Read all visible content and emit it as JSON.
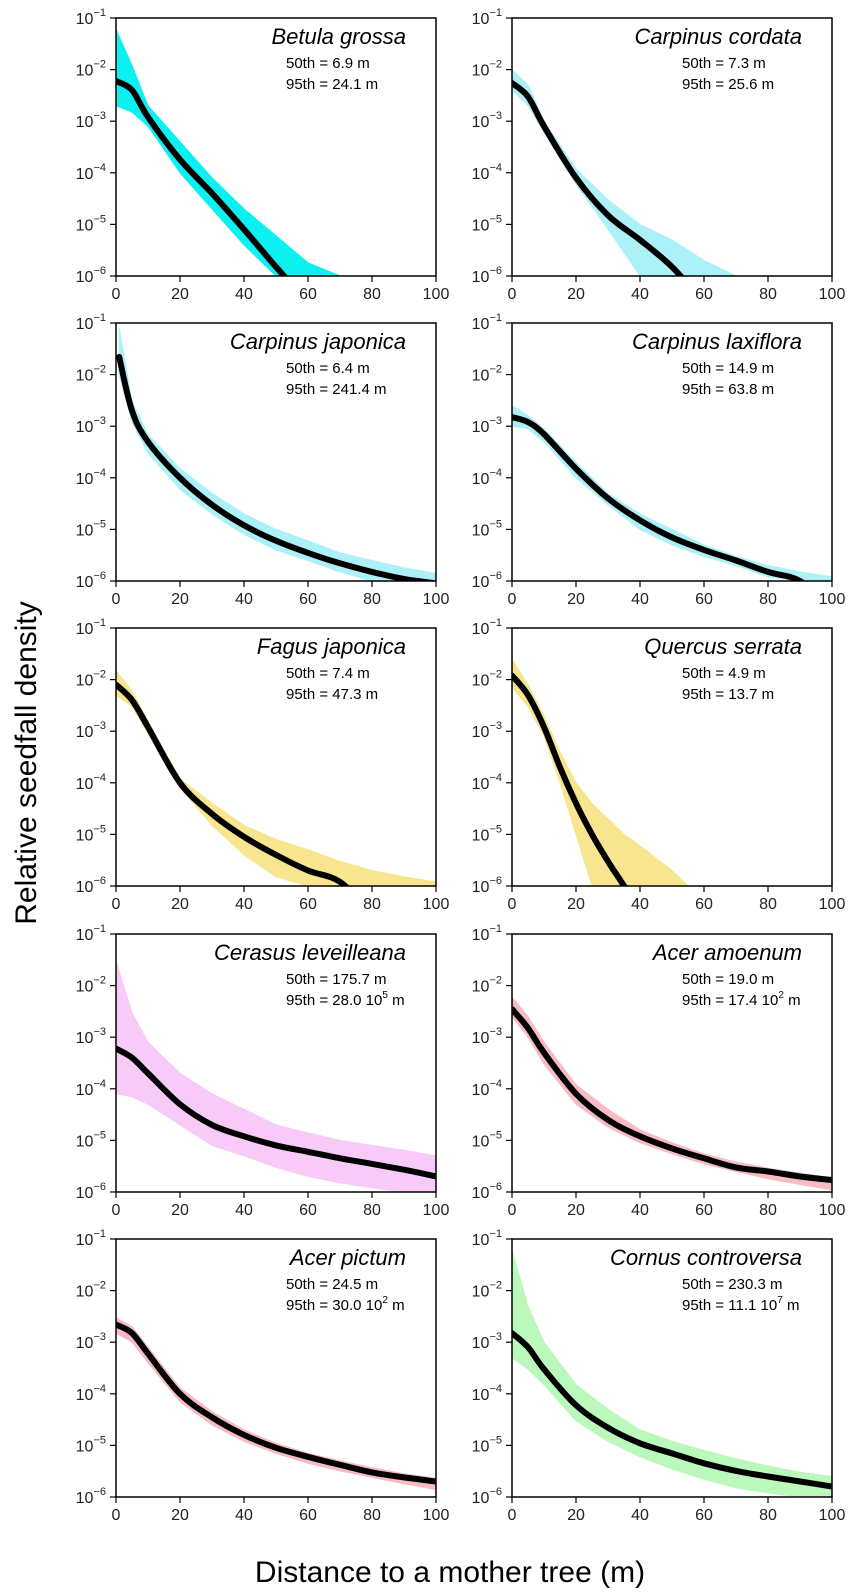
{
  "figure": {
    "ylabel": "Relative seedfall density",
    "xlabel": "Distance to a mother tree (m)"
  },
  "chart_data": [
    {
      "type": "line",
      "title": "Betula grossa",
      "xlim": [
        0,
        100
      ],
      "ylim": [
        1e-06,
        0.1
      ],
      "yscale": "log",
      "color": "#00f0f0",
      "stats": {
        "p50": "50th = 6.9 m",
        "p95": "95th = 24.1 m"
      },
      "x": [
        0,
        5,
        10,
        20,
        30,
        40,
        50,
        60,
        70,
        80,
        90,
        100
      ],
      "median": [
        0.006,
        0.004,
        0.0012,
        0.00018,
        4e-05,
        8e-06,
        1.5e-06,
        null,
        null,
        null,
        null,
        null
      ],
      "band_upper": [
        0.06,
        0.012,
        0.002,
        0.0004,
        8e-05,
        2e-05,
        6e-06,
        1.8e-06,
        null,
        null,
        null,
        null
      ],
      "band_lower": [
        0.002,
        0.0015,
        0.0008,
        0.0001,
        2e-05,
        4e-06,
        1e-06,
        null,
        null,
        null,
        null,
        null
      ]
    },
    {
      "type": "line",
      "title": "Carpinus cordata",
      "xlim": [
        0,
        100
      ],
      "ylim": [
        1e-06,
        0.1
      ],
      "yscale": "log",
      "color": "#a8f0f8",
      "stats": {
        "p50": "50th = 7.3 m",
        "p95": "95th = 25.6 m"
      },
      "x": [
        0,
        5,
        10,
        20,
        30,
        40,
        50,
        60,
        70,
        80,
        90,
        100
      ],
      "median": [
        0.0055,
        0.003,
        0.0008,
        8e-05,
        1.5e-05,
        5e-06,
        1.5e-06,
        null,
        null,
        null,
        null,
        null
      ],
      "band_upper": [
        0.01,
        0.005,
        0.001,
        0.00012,
        3e-05,
        1e-05,
        5e-06,
        2e-06,
        1e-06,
        null,
        null,
        null
      ],
      "band_lower": [
        0.004,
        0.002,
        0.0006,
        6e-05,
        8e-06,
        1e-06,
        null,
        null,
        null,
        null,
        null,
        null
      ]
    },
    {
      "type": "line",
      "title": "Carpinus japonica",
      "xlim": [
        0,
        100
      ],
      "ylim": [
        1e-06,
        0.1
      ],
      "yscale": "log",
      "color": "#a8f0f8",
      "stats": {
        "p50": "50th = 6.4 m",
        "p95": "95th = 241.4 m"
      },
      "x": [
        1,
        5,
        10,
        20,
        30,
        40,
        50,
        60,
        70,
        80,
        90,
        100
      ],
      "median": [
        0.022,
        0.002,
        0.0005,
        0.0001,
        3e-05,
        1.2e-05,
        6e-06,
        3.5e-06,
        2.2e-06,
        1.5e-06,
        1.1e-06,
        9e-07
      ],
      "band_upper": [
        0.08,
        0.003,
        0.0007,
        0.00015,
        5e-05,
        2e-05,
        1e-05,
        6e-06,
        3.5e-06,
        2.5e-06,
        1.8e-06,
        1.4e-06
      ],
      "band_lower": [
        0.01,
        0.0012,
        0.0003,
        6e-05,
        2e-05,
        8e-06,
        4e-06,
        2.5e-06,
        1.5e-06,
        1e-06,
        null,
        null
      ]
    },
    {
      "type": "line",
      "title": "Carpinus laxiflora",
      "xlim": [
        0,
        100
      ],
      "ylim": [
        1e-06,
        0.1
      ],
      "yscale": "log",
      "color": "#a8f0f8",
      "stats": {
        "p50": "50th = 14.9 m",
        "p95": "95th = 63.8 m"
      },
      "x": [
        0,
        5,
        10,
        20,
        30,
        40,
        50,
        60,
        70,
        80,
        90,
        100
      ],
      "median": [
        0.0015,
        0.0012,
        0.0007,
        0.00015,
        4e-05,
        1.5e-05,
        7e-06,
        4e-06,
        2.5e-06,
        1.5e-06,
        1e-06,
        null
      ],
      "band_upper": [
        0.0025,
        0.0016,
        0.0009,
        0.0002,
        5e-05,
        2e-05,
        1e-05,
        5e-06,
        3e-06,
        2e-06,
        1.5e-06,
        1.2e-06
      ],
      "band_lower": [
        0.001,
        0.0009,
        0.0005,
        0.0001,
        3e-05,
        1e-05,
        5e-06,
        3e-06,
        2e-06,
        1.2e-06,
        null,
        null
      ]
    },
    {
      "type": "line",
      "title": "Fagus japonica",
      "xlim": [
        0,
        100
      ],
      "ylim": [
        1e-06,
        0.1
      ],
      "yscale": "log",
      "color": "#f8e48a",
      "stats": {
        "p50": "50th = 7.4 m",
        "p95": "95th = 47.3 m"
      },
      "x": [
        0,
        5,
        10,
        20,
        30,
        40,
        50,
        60,
        70,
        80,
        90,
        100
      ],
      "median": [
        0.008,
        0.004,
        0.0012,
        0.0001,
        2.5e-05,
        9e-06,
        4e-06,
        2e-06,
        1.2e-06,
        null,
        null,
        null
      ],
      "band_upper": [
        0.015,
        0.006,
        0.0016,
        0.00012,
        4e-05,
        1.5e-05,
        8e-06,
        5e-06,
        3e-06,
        2e-06,
        1.5e-06,
        1.2e-06
      ],
      "band_lower": [
        0.005,
        0.003,
        0.0009,
        8e-05,
        1.5e-05,
        4e-06,
        1.5e-06,
        null,
        null,
        null,
        null,
        null
      ]
    },
    {
      "type": "line",
      "title": "Quercus serrata",
      "xlim": [
        0,
        100
      ],
      "ylim": [
        1e-06,
        0.1
      ],
      "yscale": "log",
      "color": "#f8e48a",
      "stats": {
        "p50": "50th = 4.9 m",
        "p95": "95th = 13.7 m"
      },
      "x": [
        0,
        5,
        10,
        15,
        20,
        25,
        30,
        35,
        40,
        50,
        55
      ],
      "median": [
        0.012,
        0.005,
        0.0012,
        0.0002,
        4e-05,
        1e-05,
        3e-06,
        1e-06,
        null,
        null,
        null
      ],
      "band_upper": [
        0.025,
        0.008,
        0.002,
        0.0004,
        0.0001,
        4e-05,
        2e-05,
        1e-05,
        6e-06,
        2e-06,
        1e-06
      ],
      "band_lower": [
        0.007,
        0.003,
        0.0008,
        0.0001,
        1e-05,
        1e-06,
        null,
        null,
        null,
        null,
        null
      ]
    },
    {
      "type": "line",
      "title": "Cerasus leveilleana",
      "xlim": [
        0,
        100
      ],
      "ylim": [
        1e-06,
        0.1
      ],
      "yscale": "log",
      "color": "#f8c8f8",
      "stats": {
        "p50": "50th = 175.7 m",
        "p95_base": "95th = 28.0  10",
        "p95_exp": "5",
        "p95_unit": " m"
      },
      "x": [
        0,
        5,
        10,
        20,
        30,
        40,
        50,
        60,
        70,
        80,
        90,
        100
      ],
      "median": [
        0.0006,
        0.0004,
        0.0002,
        5e-05,
        2e-05,
        1.2e-05,
        8e-06,
        6e-06,
        4.5e-06,
        3.5e-06,
        2.7e-06,
        2e-06
      ],
      "band_upper": [
        0.03,
        0.003,
        0.0008,
        0.0002,
        8e-05,
        4e-05,
        2e-05,
        1.4e-05,
        1e-05,
        8e-06,
        6.5e-06,
        5e-06
      ],
      "band_lower": [
        8e-05,
        7e-05,
        5e-05,
        2e-05,
        8e-06,
        5e-06,
        3e-06,
        2e-06,
        1.5e-06,
        1.2e-06,
        1e-06,
        null
      ]
    },
    {
      "type": "line",
      "title": "Acer amoenum",
      "xlim": [
        0,
        100
      ],
      "ylim": [
        1e-06,
        0.1
      ],
      "yscale": "log",
      "color": "#f8b8c0",
      "stats": {
        "p50": "50th = 19.0 m",
        "p95_base": "95th = 17.4  10",
        "p95_exp": "2",
        "p95_unit": " m"
      },
      "x": [
        0,
        5,
        10,
        20,
        30,
        40,
        50,
        60,
        70,
        80,
        90,
        100
      ],
      "median": [
        0.0035,
        0.0015,
        0.0005,
        8e-05,
        2.5e-05,
        1.2e-05,
        7e-06,
        4.5e-06,
        3e-06,
        2.5e-06,
        2e-06,
        1.7e-06
      ],
      "band_upper": [
        0.006,
        0.0025,
        0.0008,
        0.00012,
        4e-05,
        1.6e-05,
        9e-06,
        5.5e-06,
        3.8e-06,
        2.9e-06,
        2.3e-06,
        1.9e-06
      ],
      "band_lower": [
        0.0025,
        0.001,
        0.0003,
        5e-05,
        1.8e-05,
        9e-06,
        5.5e-06,
        3.5e-06,
        2.5e-06,
        1.8e-06,
        1.4e-06,
        1.1e-06
      ]
    },
    {
      "type": "line",
      "title": "Acer pictum",
      "xlim": [
        0,
        100
      ],
      "ylim": [
        1e-06,
        0.1
      ],
      "yscale": "log",
      "color": "#f8b8c0",
      "stats": {
        "p50": "50th = 24.5 m",
        "p95_base": "95th = 30.0  10",
        "p95_exp": "2",
        "p95_unit": " m"
      },
      "x": [
        0,
        5,
        10,
        20,
        30,
        40,
        50,
        60,
        70,
        80,
        90,
        100
      ],
      "median": [
        0.0022,
        0.0015,
        0.0006,
        0.0001,
        3.5e-05,
        1.6e-05,
        9e-06,
        6e-06,
        4.2e-06,
        3e-06,
        2.4e-06,
        2e-06
      ],
      "band_upper": [
        0.003,
        0.002,
        0.0008,
        0.00013,
        4.5e-05,
        2e-05,
        1.1e-05,
        7e-06,
        5e-06,
        3.7e-06,
        2.8e-06,
        2.3e-06
      ],
      "band_lower": [
        0.0015,
        0.001,
        0.0004,
        7e-05,
        2.5e-05,
        1.2e-05,
        7e-06,
        4.5e-06,
        3.2e-06,
        2.4e-06,
        1.8e-06,
        1.4e-06
      ]
    },
    {
      "type": "line",
      "title": "Cornus controversa",
      "xlim": [
        0,
        100
      ],
      "ylim": [
        1e-06,
        0.1
      ],
      "yscale": "log",
      "color": "#b8f8b8",
      "stats": {
        "p50": "50th = 230.3 m",
        "p95_base": "95th = 11.1  10",
        "p95_exp": "7",
        "p95_unit": " m"
      },
      "x": [
        0,
        5,
        10,
        20,
        30,
        40,
        50,
        60,
        70,
        80,
        90,
        100
      ],
      "median": [
        0.0015,
        0.0008,
        0.0003,
        6e-05,
        2.2e-05,
        1.1e-05,
        7e-06,
        4.5e-06,
        3.2e-06,
        2.5e-06,
        2e-06,
        1.6e-06
      ],
      "band_upper": [
        0.06,
        0.005,
        0.001,
        0.00015,
        5e-05,
        2e-05,
        1.2e-05,
        8e-06,
        5.5e-06,
        4e-06,
        3e-06,
        2.5e-06
      ],
      "band_lower": [
        0.0005,
        0.0003,
        0.00015,
        3e-05,
        1.2e-05,
        6e-06,
        3.5e-06,
        2.2e-06,
        1.5e-06,
        1.2e-06,
        1e-06,
        null
      ]
    }
  ],
  "axes": {
    "xticks": [
      "0",
      "20",
      "40",
      "60",
      "80",
      "100"
    ],
    "xtick_values": [
      0,
      20,
      40,
      60,
      80,
      100
    ],
    "ytick_base": "10",
    "yticks_exp": [
      "−1",
      "−2",
      "−3",
      "−4",
      "−5",
      "−6"
    ],
    "ytick_values": [
      0.1,
      0.01,
      0.001,
      0.0001,
      1e-05,
      1e-06
    ]
  },
  "colors": {
    "median_line": "#000000",
    "frame": "#000000"
  }
}
